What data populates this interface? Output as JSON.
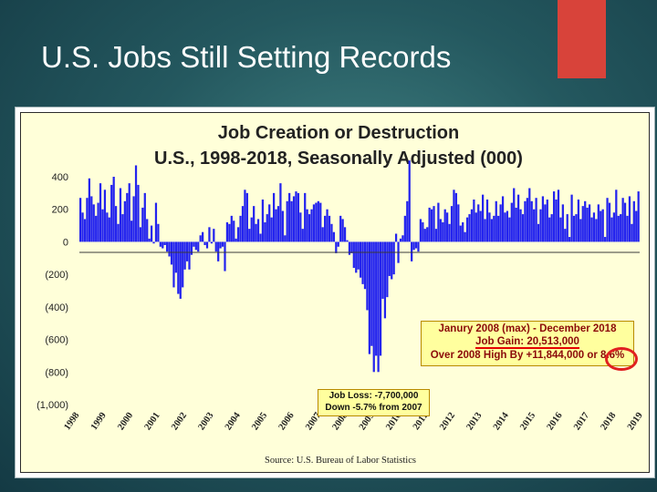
{
  "slide": {
    "title": "U.S. Jobs Still Setting Records",
    "accent_color": "#d8433a"
  },
  "chart_data": {
    "type": "bar",
    "title": "Job Creation or Destruction",
    "subtitle": "U.S., 1998-2018, Seasonally Adjusted (000)",
    "source": "Source:  U.S. Bureau of Labor Statistics",
    "xlabel": "",
    "ylabel": "",
    "ylim": [
      -1000,
      400
    ],
    "yticks": [
      400,
      200,
      0,
      -200,
      -400,
      -600,
      -800,
      -1000
    ],
    "ytick_labels": [
      "400",
      "200",
      "0",
      "(200)",
      "(400)",
      "(600)",
      "(800)",
      "(1,000)"
    ],
    "xtick_labels": [
      "1998",
      "1999",
      "2000",
      "2001",
      "2002",
      "2003",
      "2004",
      "2005",
      "2006",
      "2007",
      "2008",
      "2009",
      "2010",
      "2011",
      "2012",
      "2013",
      "2014",
      "2015",
      "2016",
      "2017",
      "2018",
      "2019"
    ],
    "x_start": "1998-01",
    "bar_color": "#2323ee",
    "grid": false,
    "series": [
      {
        "values": [
          270,
          180,
          140,
          270,
          390,
          280,
          230,
          160,
          240,
          360,
          200,
          320,
          180,
          150,
          350,
          400,
          220,
          110,
          330,
          170,
          250,
          300,
          360,
          130,
          280,
          470,
          350,
          90,
          210,
          300,
          140,
          20,
          100,
          -10,
          240,
          110,
          -30,
          -40,
          -20,
          -60,
          -90,
          -140,
          -280,
          -190,
          -320,
          -350,
          -280,
          -170,
          -120,
          -170,
          -80,
          -30,
          -50,
          -60,
          40,
          60,
          -20,
          -40,
          90,
          -10,
          80,
          -60,
          -120,
          -40,
          -30,
          -180,
          120,
          110,
          160,
          130,
          20,
          90,
          160,
          220,
          320,
          300,
          80,
          150,
          220,
          110,
          140,
          50,
          260,
          120,
          170,
          230,
          150,
          300,
          200,
          220,
          360,
          190,
          40,
          250,
          300,
          250,
          280,
          310,
          300,
          180,
          80,
          300,
          200,
          170,
          200,
          230,
          240,
          250,
          240,
          90,
          160,
          200,
          160,
          110,
          60,
          -70,
          -30,
          160,
          140,
          90,
          10,
          -80,
          -70,
          -160,
          -190,
          -170,
          -220,
          -260,
          -290,
          -420,
          -690,
          -640,
          -800,
          -700,
          -800,
          -700,
          -350,
          -470,
          -340,
          -210,
          -230,
          -200,
          50,
          -130,
          20,
          40,
          160,
          250,
          500,
          -120,
          -50,
          -40,
          -60,
          140,
          120,
          80,
          90,
          210,
          200,
          220,
          80,
          240,
          140,
          120,
          200,
          180,
          110,
          220,
          320,
          300,
          230,
          100,
          120,
          60,
          150,
          170,
          200,
          260,
          180,
          230,
          190,
          290,
          140,
          260,
          180,
          140,
          160,
          250,
          160,
          230,
          280,
          180,
          190,
          150,
          240,
          330,
          210,
          290,
          200,
          170,
          250,
          270,
          330,
          250,
          200,
          270,
          110,
          200,
          280,
          230,
          260,
          150,
          170,
          310,
          260,
          320,
          150,
          230,
          80,
          170,
          30,
          290,
          160,
          170,
          260,
          140,
          220,
          250,
          210,
          230,
          150,
          180,
          140,
          230,
          190,
          200,
          30,
          270,
          240,
          150,
          180,
          320,
          160,
          170,
          270,
          240,
          160,
          280,
          110,
          250,
          190,
          310
        ]
      }
    ],
    "annotations": {
      "gain_box": [
        "Janury 2008 (max) - December 2018",
        "Job Gain:  20,513,000",
        "Over 2008 High By +11,844,000 or 8.6%"
      ],
      "loss_box": [
        "Job Loss:  -7,700,000",
        "Down -5.7% from 2007"
      ]
    }
  }
}
